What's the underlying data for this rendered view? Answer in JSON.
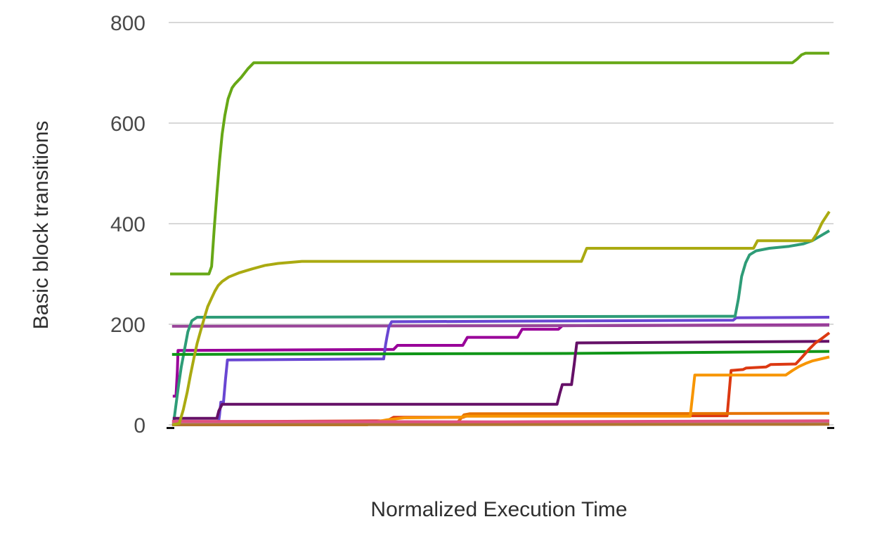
{
  "chart_data": {
    "type": "line",
    "title": "",
    "xlabel": "Normalized Execution Time",
    "ylabel": "Basic block transitions",
    "xlim": [
      0,
      1
    ],
    "ylim": [
      0,
      800
    ],
    "yticks": [
      0,
      200,
      400,
      600,
      800
    ],
    "xticks": [],
    "grid": "horizontal",
    "legend": "none",
    "background_color": "#ffffff",
    "gridline_color": "#cccccc",
    "baseline_color": "#111111",
    "tick_label_color": "#4a4a4a",
    "axis_title_color": "#2f2f2f",
    "series": [
      {
        "name": "magenta",
        "color": "#990099",
        "points": [
          [
            0.004,
            57
          ],
          [
            0.009,
            57
          ],
          [
            0.011,
            105
          ],
          [
            0.012,
            148
          ],
          [
            0.339,
            150
          ],
          [
            0.345,
            158
          ],
          [
            0.444,
            158
          ],
          [
            0.451,
            174
          ],
          [
            0.527,
            174
          ],
          [
            0.534,
            190
          ],
          [
            0.589,
            190
          ],
          [
            0.595,
            197
          ],
          [
            1,
            199
          ]
        ]
      },
      {
        "name": "orchid",
        "color": "#994499",
        "points": [
          [
            0.003,
            196
          ],
          [
            1,
            198
          ]
        ]
      },
      {
        "name": "violet",
        "color": "#6946D2",
        "points": [
          [
            0.073,
            0
          ],
          [
            0.075,
            20
          ],
          [
            0.077,
            45
          ],
          [
            0.081,
            45
          ],
          [
            0.084,
            90
          ],
          [
            0.087,
            129
          ],
          [
            0.324,
            131
          ],
          [
            0.327,
            160
          ],
          [
            0.329,
            175
          ],
          [
            0.332,
            195
          ],
          [
            0.336,
            205
          ],
          [
            0.854,
            208
          ],
          [
            0.859,
            213
          ],
          [
            1,
            214
          ]
        ]
      },
      {
        "name": "teal",
        "color": "#2E9C77",
        "points": [
          [
            0.005,
            0
          ],
          [
            0.009,
            40
          ],
          [
            0.013,
            80
          ],
          [
            0.017,
            115
          ],
          [
            0.022,
            150
          ],
          [
            0.027,
            185
          ],
          [
            0.033,
            207
          ],
          [
            0.041,
            214
          ],
          [
            0.857,
            216
          ],
          [
            0.862,
            250
          ],
          [
            0.867,
            295
          ],
          [
            0.873,
            322
          ],
          [
            0.879,
            338
          ],
          [
            0.889,
            346
          ],
          [
            0.909,
            351
          ],
          [
            0.939,
            355
          ],
          [
            0.961,
            360
          ],
          [
            0.974,
            366
          ],
          [
            0.987,
            376
          ],
          [
            1,
            386
          ]
        ]
      },
      {
        "name": "green",
        "color": "#109618",
        "points": [
          [
            0.003,
            140
          ],
          [
            0.6,
            142
          ],
          [
            1,
            146
          ]
        ]
      },
      {
        "name": "dark-purple",
        "color": "#651067",
        "points": [
          [
            0.004,
            13
          ],
          [
            0.071,
            13
          ],
          [
            0.074,
            28
          ],
          [
            0.079,
            41
          ],
          [
            0.587,
            41
          ],
          [
            0.591,
            62
          ],
          [
            0.595,
            80
          ],
          [
            0.609,
            80
          ],
          [
            0.613,
            120
          ],
          [
            0.617,
            163
          ],
          [
            1,
            166
          ]
        ]
      },
      {
        "name": "red",
        "color": "#DC3912",
        "points": [
          [
            0.004,
            6
          ],
          [
            0.329,
            8
          ],
          [
            0.339,
            15
          ],
          [
            0.444,
            15
          ],
          [
            0.451,
            18
          ],
          [
            0.845,
            18
          ],
          [
            0.851,
            108
          ],
          [
            0.869,
            110
          ],
          [
            0.874,
            113
          ],
          [
            0.904,
            115
          ],
          [
            0.911,
            120
          ],
          [
            0.949,
            121
          ],
          [
            0.959,
            135
          ],
          [
            0.969,
            150
          ],
          [
            0.979,
            163
          ],
          [
            0.989,
            172
          ],
          [
            1,
            183
          ]
        ]
      },
      {
        "name": "dark-orange",
        "color": "#E67300",
        "points": [
          [
            0.004,
            0
          ],
          [
            0.434,
            2
          ],
          [
            0.446,
            20
          ],
          [
            0.454,
            22
          ],
          [
            1,
            23
          ]
        ]
      },
      {
        "name": "orange",
        "color": "#F79500",
        "points": [
          [
            0.004,
            0
          ],
          [
            0.299,
            0
          ],
          [
            0.309,
            5
          ],
          [
            0.329,
            10
          ],
          [
            0.355,
            14
          ],
          [
            0.439,
            15
          ],
          [
            0.449,
            17
          ],
          [
            0.789,
            17
          ],
          [
            0.796,
            99
          ],
          [
            0.934,
            99
          ],
          [
            0.944,
            108
          ],
          [
            0.954,
            116
          ],
          [
            0.964,
            122
          ],
          [
            0.974,
            127
          ],
          [
            1,
            135
          ]
        ]
      },
      {
        "name": "dusty-rose",
        "color": "#B5808C",
        "points": [
          [
            0.003,
            3
          ],
          [
            1,
            3
          ]
        ]
      },
      {
        "name": "pink",
        "color": "#E0517E",
        "points": [
          [
            0.003,
            7
          ],
          [
            0.5,
            6
          ],
          [
            1,
            8
          ]
        ]
      },
      {
        "name": "brown",
        "color": "#B0742E",
        "points": [
          [
            0.003,
            0
          ],
          [
            1,
            1
          ]
        ]
      },
      {
        "name": "olive",
        "color": "#AAAA11",
        "points": [
          [
            0.004,
            0
          ],
          [
            0.014,
            3
          ],
          [
            0.02,
            30
          ],
          [
            0.026,
            65
          ],
          [
            0.031,
            100
          ],
          [
            0.036,
            132
          ],
          [
            0.041,
            162
          ],
          [
            0.047,
            190
          ],
          [
            0.052,
            213
          ],
          [
            0.057,
            235
          ],
          [
            0.063,
            252
          ],
          [
            0.068,
            266
          ],
          [
            0.073,
            277
          ],
          [
            0.079,
            285
          ],
          [
            0.089,
            294
          ],
          [
            0.104,
            302
          ],
          [
            0.124,
            310
          ],
          [
            0.144,
            317
          ],
          [
            0.164,
            321
          ],
          [
            0.2,
            325
          ],
          [
            0.624,
            325
          ],
          [
            0.632,
            351
          ],
          [
            0.885,
            351
          ],
          [
            0.891,
            366
          ],
          [
            0.974,
            366
          ],
          [
            0.981,
            380
          ],
          [
            0.989,
            402
          ],
          [
            1,
            424
          ]
        ]
      },
      {
        "name": "lime",
        "color": "#67A816",
        "points": [
          [
            0,
            300
          ],
          [
            0.059,
            300
          ],
          [
            0.063,
            315
          ],
          [
            0.067,
            390
          ],
          [
            0.071,
            460
          ],
          [
            0.075,
            525
          ],
          [
            0.079,
            578
          ],
          [
            0.083,
            615
          ],
          [
            0.088,
            648
          ],
          [
            0.094,
            670
          ],
          [
            0.098,
            677
          ],
          [
            0.108,
            691
          ],
          [
            0.118,
            708
          ],
          [
            0.127,
            720
          ],
          [
            0.944,
            720
          ],
          [
            0.951,
            727
          ],
          [
            0.958,
            736
          ],
          [
            0.964,
            739
          ],
          [
            1,
            739
          ]
        ]
      }
    ]
  }
}
